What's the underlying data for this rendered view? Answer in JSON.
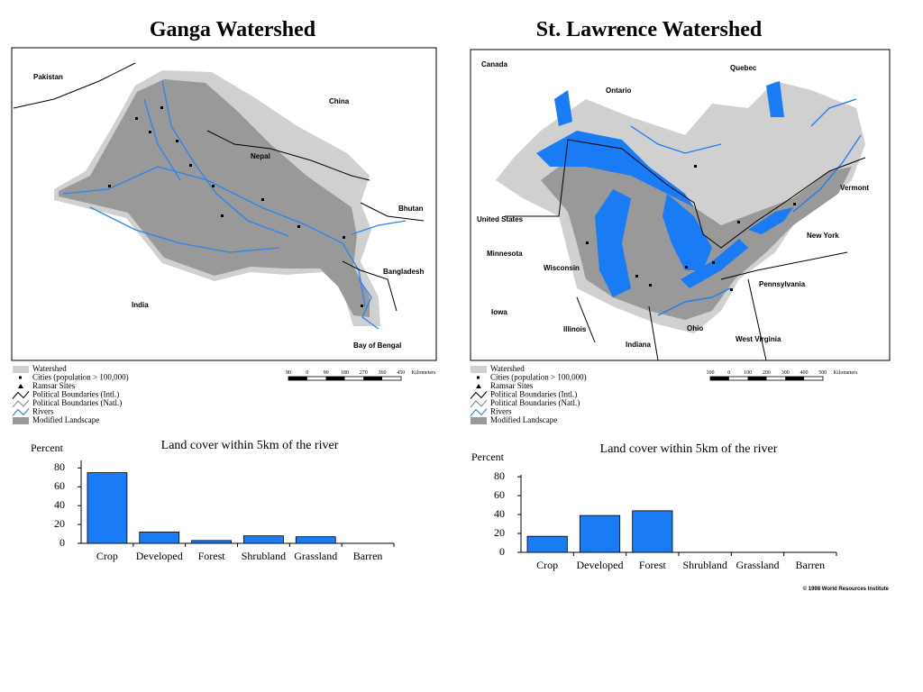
{
  "maps": [
    {
      "title": "Ganga Watershed",
      "labels": [
        "Pakistan",
        "China",
        "Nepal",
        "Bhutan",
        "Bangladesh",
        "India",
        "Bay of Bengal"
      ],
      "scale": [
        "90",
        "0",
        "90",
        "180",
        "270",
        "360",
        "450",
        "Kilometers"
      ]
    },
    {
      "title": "St. Lawrence Watershed",
      "labels": [
        "Canada",
        "Quebec",
        "Ontario",
        "United States",
        "Minnesota",
        "Wisconsin",
        "Iowa",
        "Illinois",
        "Indiana",
        "Ohio",
        "West Virginia",
        "Pennsylvania",
        "New York",
        "Vermont"
      ],
      "scale": [
        "100",
        "0",
        "100",
        "200",
        "300",
        "400",
        "500",
        "Kilometers"
      ]
    }
  ],
  "legend": [
    "Watershed",
    "Cities (population > 100,000)",
    "Ramsar Sites",
    "Political Boundaries (Intl.)",
    "Political Boundaries (Natl.)",
    "Rivers",
    "Modified Landscape"
  ],
  "credit": "© 1998 World Resources Institute",
  "chart_data": [
    {
      "type": "bar",
      "title": "Land cover within 5km of the river",
      "y_label": "Percent",
      "categories": [
        "Crop",
        "Developed",
        "Forest",
        "Shrubland",
        "Grassland",
        "Barren"
      ],
      "values": [
        75,
        12,
        3,
        8,
        7,
        0
      ],
      "color": "#1a7cf5",
      "ylim": [
        0,
        88
      ],
      "yticks": [
        0,
        20,
        40,
        60,
        80
      ]
    },
    {
      "type": "bar",
      "title": "Land cover within 5km of the river",
      "y_label": "Percent",
      "categories": [
        "Crop",
        "Developed",
        "Forest",
        "Shrubland",
        "Grassland",
        "Barren"
      ],
      "values": [
        17,
        39,
        44,
        0,
        0,
        0
      ],
      "color": "#1a7cf5",
      "ylim": [
        0,
        82
      ],
      "yticks": [
        0,
        20,
        40,
        60,
        80
      ]
    }
  ]
}
